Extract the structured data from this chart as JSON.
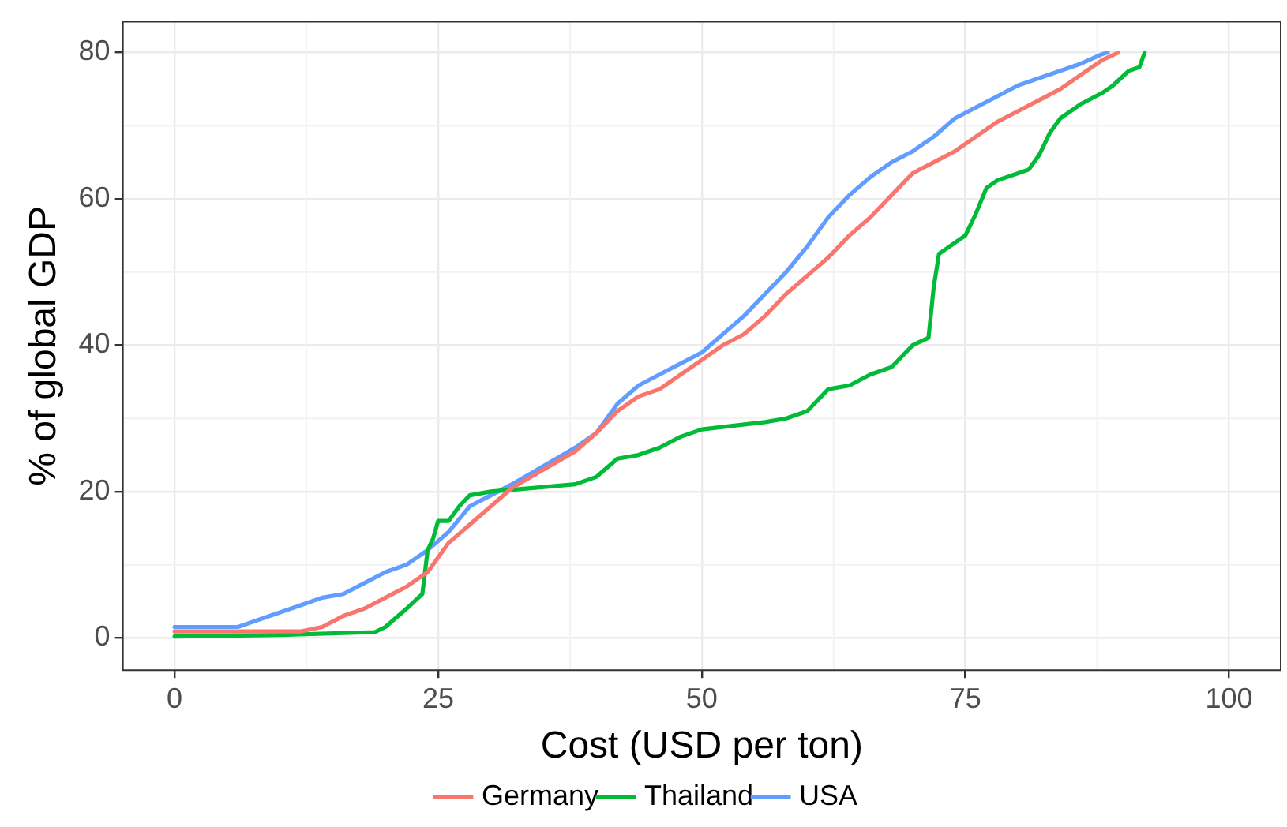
{
  "chart_data": {
    "type": "line",
    "xlabel": "Cost (USD per ton)",
    "ylabel": "% of global GDP",
    "xlim": [
      -4.9,
      104.9
    ],
    "ylim": [
      -4.4,
      84.2
    ],
    "xticks": [
      0,
      25,
      50,
      75,
      100
    ],
    "yticks": [
      0,
      20,
      40,
      60,
      80
    ],
    "grid": true,
    "legend": "bottom",
    "marker": "none",
    "line_style": "solid",
    "series": [
      {
        "name": "Germany",
        "color": "#f8766d",
        "x": [
          0,
          12,
          14,
          16,
          18,
          20,
          22,
          24,
          25,
          26,
          28,
          30,
          32,
          35,
          38,
          40,
          42,
          44,
          46,
          48,
          50,
          52,
          54,
          56,
          58,
          60,
          62,
          64,
          66,
          68,
          70,
          72,
          74,
          76,
          78,
          80,
          82,
          84,
          86,
          88,
          89.5
        ],
        "values": [
          0.9,
          0.9,
          1.5,
          3,
          4,
          5.5,
          7,
          9,
          11,
          13,
          15.5,
          18,
          20.5,
          23,
          25.5,
          28,
          31,
          33,
          34,
          36,
          38,
          40,
          41.5,
          44,
          47,
          49.5,
          52,
          55,
          57.5,
          60.5,
          63.5,
          65,
          66.5,
          68.5,
          70.5,
          72,
          73.5,
          75,
          77,
          79,
          80
        ]
      },
      {
        "name": "Thailand",
        "color": "#00ba38",
        "x": [
          0,
          10,
          19,
          20,
          22,
          23.5,
          24,
          24.5,
          25,
          26,
          27,
          28,
          30,
          34,
          38,
          40,
          42,
          44,
          46,
          48,
          50,
          56,
          58,
          60,
          62,
          64,
          66,
          68,
          70,
          71.5,
          72,
          72.5,
          74,
          75,
          76,
          77,
          78,
          80,
          81,
          82,
          83,
          84,
          86,
          88,
          89,
          90.5,
          91.5,
          92
        ],
        "values": [
          0.2,
          0.4,
          0.8,
          1.5,
          4,
          6,
          12,
          13.5,
          16,
          16,
          18,
          19.5,
          20,
          20.5,
          21,
          22,
          24.5,
          25,
          26,
          27.5,
          28.5,
          29.5,
          30,
          31,
          34,
          34.5,
          36,
          37,
          40,
          41,
          48,
          52.5,
          54,
          55,
          58,
          61.5,
          62.5,
          63.5,
          64,
          66,
          69,
          71,
          73,
          74.5,
          75.5,
          77.5,
          78,
          80
        ]
      },
      {
        "name": "USA",
        "color": "#619cff",
        "x": [
          0,
          6,
          8,
          10,
          12,
          14,
          16,
          18,
          20,
          22,
          24,
          26,
          28,
          30,
          32,
          35,
          38,
          40,
          42,
          44,
          46,
          48,
          50,
          52,
          54,
          56,
          58,
          60,
          62,
          64,
          66,
          68,
          70,
          72,
          74,
          76,
          78,
          80,
          82,
          84,
          86,
          88,
          88.5
        ],
        "values": [
          1.5,
          1.5,
          2.5,
          3.5,
          4.5,
          5.5,
          6,
          7.5,
          9,
          10,
          12,
          14.5,
          18,
          19.5,
          21,
          23.5,
          26,
          28,
          32,
          34.5,
          36,
          37.5,
          39,
          41.5,
          44,
          47,
          50,
          53.5,
          57.5,
          60.5,
          63,
          65,
          66.5,
          68.5,
          71,
          72.5,
          74,
          75.5,
          76.5,
          77.5,
          78.5,
          79.8,
          80
        ]
      }
    ]
  }
}
